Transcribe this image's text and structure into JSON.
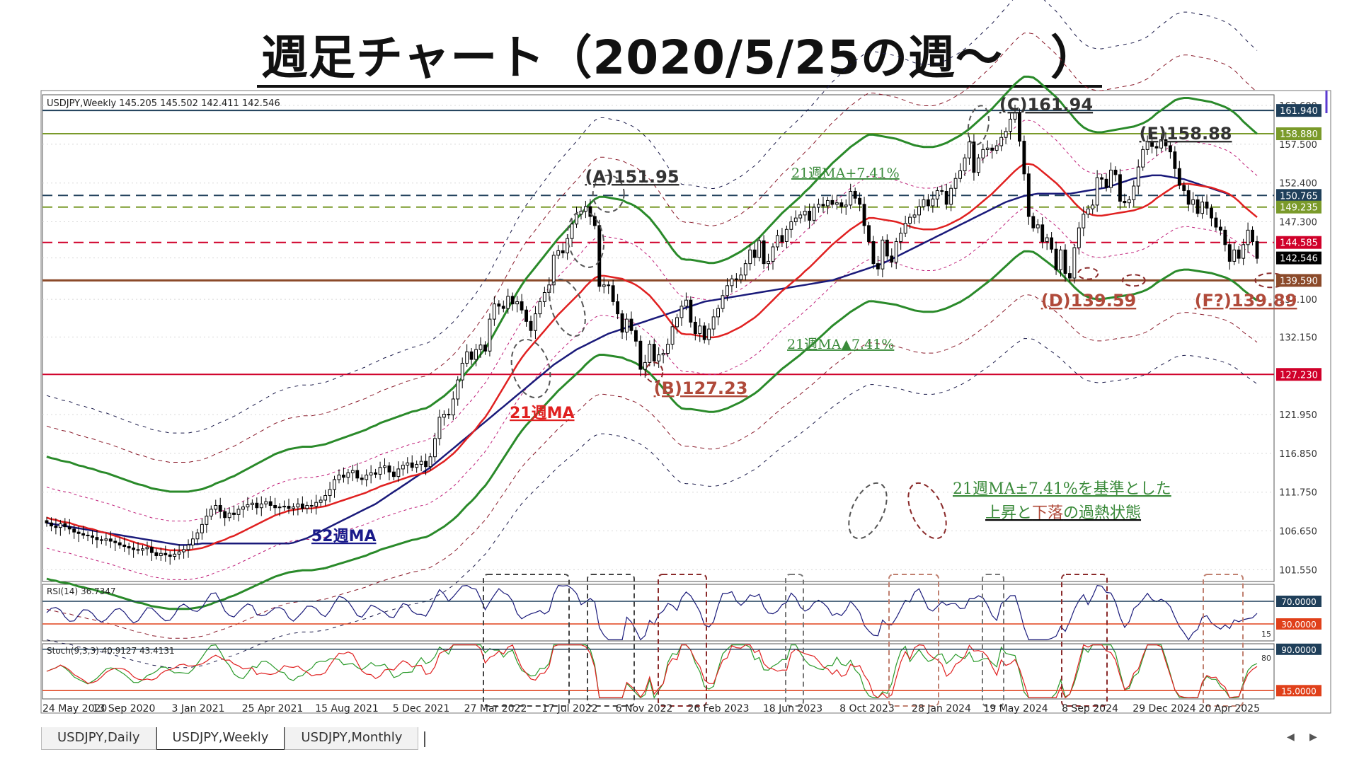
{
  "page": {
    "title": "週足チャート（2020/5/25の週〜　）"
  },
  "chart_data": {
    "type": "candlestick",
    "symbol_header": "USDJPY,Weekly  145.205 145.502 142.411 142.546",
    "main": {
      "ylim": [
        100,
        164
      ],
      "price_ticks": [
        "162.600",
        "157.500",
        "152.400",
        "147.300",
        "142.546",
        "137.100",
        "132.150",
        "127.230",
        "121.950",
        "116.850",
        "111.750",
        "106.650",
        "101.550"
      ],
      "date_ticks": [
        "24 May 2020",
        "13 Sep 2020",
        "3 Jan 2021",
        "25 Apr 2021",
        "15 Aug 2021",
        "5 Dec 2021",
        "27 Mar 2022",
        "17 Jul 2022",
        "6 Nov 2022",
        "26 Feb 2023",
        "18 Jun 2023",
        "8 Oct 2023",
        "28 Jan 2024",
        "19 May 2024",
        "8 Sep 2024",
        "29 Dec 2024",
        "20 Apr 2025"
      ],
      "levels": [
        {
          "value": 161.94,
          "label": "161.940",
          "color": "#1f3f5a",
          "style": "solid"
        },
        {
          "value": 158.88,
          "label": "158.880",
          "color": "#7a9a2a",
          "style": "solid"
        },
        {
          "value": 150.765,
          "label": "150.765",
          "color": "#1f3f5a",
          "style": "dashed"
        },
        {
          "value": 149.235,
          "label": "149.235",
          "color": "#7a9a2a",
          "style": "dashed"
        },
        {
          "value": 144.585,
          "label": "144.585",
          "color": "#d0002a",
          "style": "dashed"
        },
        {
          "value": 142.546,
          "label": "142.546",
          "color": "#000000",
          "style": "none"
        },
        {
          "value": 139.59,
          "label": "139.590",
          "color": "#8b4a2a",
          "style": "thick"
        },
        {
          "value": 127.23,
          "label": "127.230",
          "color": "#d0002a",
          "style": "solid"
        }
      ],
      "closes": [
        107.7,
        107.3,
        107.1,
        107.6,
        107.2,
        106.9,
        106.5,
        106.3,
        106.1,
        106.0,
        105.8,
        105.5,
        105.4,
        105.6,
        105.3,
        105.1,
        104.8,
        104.6,
        104.4,
        104.2,
        104.1,
        104.3,
        104.5,
        103.8,
        103.4,
        103.7,
        103.5,
        103.3,
        103.6,
        103.9,
        104.2,
        104.8,
        105.6,
        106.4,
        107.5,
        108.6,
        109.5,
        110.0,
        109.2,
        108.4,
        109.0,
        108.8,
        109.5,
        109.8,
        110.1,
        110.3,
        109.7,
        110.2,
        110.5,
        110.0,
        109.7,
        109.8,
        109.9,
        109.6,
        109.8,
        110.2,
        109.6,
        110.0,
        109.9,
        110.4,
        110.7,
        111.3,
        112.1,
        113.4,
        114.0,
        113.7,
        114.3,
        114.6,
        113.6,
        113.4,
        114.0,
        114.3,
        114.1,
        115.0,
        115.2,
        114.4,
        113.8,
        114.8,
        115.3,
        115.6,
        115.0,
        115.4,
        115.8,
        115.1,
        116.4,
        118.8,
        121.6,
        122.0,
        121.9,
        124.0,
        126.5,
        128.7,
        130.2,
        129.2,
        130.5,
        131.1,
        130.3,
        134.5,
        136.5,
        136.2,
        135.9,
        137.5,
        136.5,
        136.8,
        135.7,
        134.2,
        133.0,
        135.2,
        136.8,
        138.0,
        139.0,
        142.9,
        143.5,
        143.2,
        145.1,
        147.0,
        148.3,
        148.7,
        149.3,
        148.0,
        146.8,
        138.8,
        139.0,
        138.9,
        136.8,
        135.2,
        132.8,
        134.5,
        133.0,
        131.6,
        127.9,
        128.8,
        131.2,
        129.0,
        129.8,
        130.0,
        131.2,
        133.5,
        134.7,
        136.2,
        137.0,
        134.1,
        132.6,
        133.6,
        131.8,
        133.2,
        134.8,
        135.9,
        137.6,
        138.9,
        139.8,
        139.7,
        140.3,
        141.8,
        143.6,
        142.6,
        144.8,
        141.8,
        142.1,
        144.0,
        145.5,
        144.7,
        146.3,
        147.3,
        147.8,
        148.2,
        148.7,
        147.5,
        149.2,
        149.6,
        149.4,
        150.1,
        149.6,
        149.8,
        149.3,
        149.5,
        151.3,
        150.4,
        149.6,
        146.8,
        144.7,
        141.8,
        141.1,
        144.9,
        142.8,
        142.0,
        144.7,
        145.8,
        147.1,
        147.9,
        148.2,
        149.3,
        150.2,
        149.4,
        150.3,
        151.4,
        151.3,
        149.6,
        151.7,
        153.0,
        154.0,
        155.7,
        157.8,
        153.8,
        155.7,
        156.8,
        157.0,
        156.7,
        157.3,
        158.4,
        159.2,
        160.8,
        161.7,
        157.9,
        153.6,
        148.0,
        146.5,
        146.9,
        144.7,
        145.2,
        143.7,
        141.0,
        143.6,
        140.5,
        139.9,
        143.9,
        146.5,
        148.3,
        149.0,
        149.5,
        153.1,
        152.9,
        151.8,
        154.1,
        153.5,
        150.0,
        149.8,
        150.2,
        152.0,
        154.5,
        156.8,
        157.9,
        157.2,
        157.0,
        158.1,
        157.3,
        156.5,
        154.3,
        152.1,
        151.4,
        149.6,
        150.2,
        148.4,
        149.9,
        149.1,
        147.8,
        146.6,
        146.2,
        144.3,
        142.1,
        143.6,
        142.5,
        144.3,
        146.2,
        144.7,
        142.5
      ],
      "ma21": [
        108.4,
        108.2,
        108.1,
        107.9,
        107.8,
        107.7,
        107.5,
        107.3,
        107.2,
        107.0,
        106.9,
        106.7,
        106.5,
        106.4,
        106.2,
        106.0,
        105.8,
        105.6,
        105.4,
        105.2,
        105.0,
        104.9,
        104.7,
        104.5,
        104.4,
        104.3,
        104.2,
        104.1,
        104.1,
        104.1,
        104.1,
        104.1,
        104.2,
        104.3,
        104.4,
        104.6,
        104.8,
        105.1,
        105.3,
        105.5,
        105.8,
        106.0,
        106.3,
        106.6,
        106.9,
        107.2,
        107.5,
        107.8,
        108.1,
        108.4,
        108.7,
        108.9,
        109.1,
        109.3,
        109.4,
        109.5,
        109.6,
        109.6,
        109.6,
        109.7,
        109.8,
        109.9,
        110.1,
        110.3,
        110.5,
        110.7,
        110.9,
        111.1,
        111.3,
        111.5,
        111.7,
        112.0,
        112.2,
        112.5,
        112.7,
        112.9,
        113.1,
        113.3,
        113.5,
        113.7,
        113.9,
        114.0,
        114.2,
        114.3,
        114.6,
        115.0,
        115.4,
        115.8,
        116.3,
        116.8,
        117.4,
        118.1,
        118.8,
        119.4,
        120.1,
        120.9,
        121.6,
        122.5,
        123.5,
        124.5,
        125.5,
        126.5,
        127.5,
        128.5,
        129.4,
        130.2,
        130.9,
        131.6,
        132.3,
        133.0,
        133.7,
        134.4,
        135.1,
        135.7,
        136.3,
        136.9,
        137.5,
        138.1,
        138.8,
        139.4,
        139.9,
        140.2,
        140.2,
        140.1,
        140.0,
        139.9,
        139.8,
        139.5,
        139.3,
        139.0,
        138.6,
        138.1,
        137.6,
        136.9,
        136.2,
        135.4,
        134.6,
        133.8,
        133.1,
        132.6,
        132.5,
        132.5,
        132.4,
        132.3,
        132.2,
        132.1,
        132.1,
        132.2,
        132.4,
        132.6,
        132.9,
        133.2,
        133.5,
        133.9,
        134.3,
        134.7,
        135.2,
        135.8,
        136.4,
        137.0,
        137.6,
        138.2,
        138.7,
        139.2,
        139.7,
        140.2,
        140.8,
        141.3,
        141.9,
        142.5,
        143.1,
        143.7,
        144.3,
        144.8,
        145.3,
        145.8,
        146.3,
        146.7,
        147.1,
        147.5,
        147.8,
        147.8,
        147.7,
        147.6,
        147.5,
        147.4,
        147.3,
        147.1,
        146.9,
        146.7,
        146.5,
        146.4,
        146.3,
        146.3,
        146.3,
        146.4,
        146.6,
        146.8,
        147.1,
        147.4,
        147.7,
        148.1,
        148.5,
        149.0,
        149.5,
        150.0,
        150.5,
        151.0,
        151.6,
        152.2,
        152.8,
        153.4,
        154.0,
        154.5,
        154.9,
        154.9,
        154.8,
        154.4,
        153.9,
        153.4,
        152.9,
        152.4,
        151.8,
        151.1,
        150.5,
        149.8,
        149.2,
        148.7,
        148.4,
        148.2,
        148.1,
        148.1,
        148.2,
        148.3,
        148.4,
        148.5,
        148.6,
        148.7,
        148.8,
        149.0,
        149.2,
        149.5,
        149.9,
        150.4,
        150.8,
        151.2,
        151.6,
        152.0,
        152.2,
        152.3,
        152.3,
        152.2,
        152.1,
        152.0,
        151.9,
        151.8,
        151.6,
        151.4,
        151.2,
        150.9,
        150.5,
        150.0,
        149.4,
        148.9,
        148.4,
        147.9
      ],
      "ma52": [
        107.7,
        107.6,
        107.5,
        107.4,
        107.3,
        107.2,
        107.1,
        107.0,
        106.9,
        106.8,
        106.7,
        106.6,
        106.5,
        106.4,
        106.3,
        106.2,
        106.1,
        106.0,
        105.9,
        105.8,
        105.7,
        105.6,
        105.5,
        105.4,
        105.3,
        105.2,
        105.1,
        105.0,
        104.9,
        104.8,
        104.8,
        104.8,
        104.9,
        104.9,
        105.0,
        105.0,
        105.0,
        105.0,
        105.0,
        105.0,
        105.0,
        105.0,
        105.0,
        105.0,
        105.0,
        105.0,
        105.0,
        105.0,
        105.0,
        105.0,
        105.0,
        105.0,
        105.0,
        105.0,
        105.1,
        105.3,
        105.5,
        105.7,
        106.0,
        106.3,
        106.6,
        106.9,
        107.2,
        107.5,
        107.8,
        108.1,
        108.4,
        108.7,
        109.0,
        109.3,
        109.6,
        109.9,
        110.2,
        110.6,
        111.0,
        111.4,
        111.8,
        112.2,
        112.6,
        113.0,
        113.4,
        113.8,
        114.2,
        114.6,
        115.0,
        115.5,
        116.0,
        116.5,
        117.0,
        117.5,
        118.0,
        118.5,
        119.0,
        119.5,
        120.0,
        120.5,
        121.0,
        121.5,
        122.0,
        122.5,
        123.0,
        123.5,
        124.0,
        124.5,
        125.0,
        125.5,
        126.0,
        126.5,
        127.0,
        127.5,
        128.0,
        128.5,
        128.9,
        129.3,
        129.7,
        130.1,
        130.5,
        130.8,
        131.1,
        131.4,
        131.7,
        132.0,
        132.3,
        132.6,
        132.8,
        133.0,
        133.2,
        133.4,
        133.6,
        133.8,
        134.0,
        134.2,
        134.4,
        134.6,
        134.8,
        135.0,
        135.2,
        135.4,
        135.6,
        135.8,
        136.0,
        136.2,
        136.4,
        136.6,
        136.8,
        136.9,
        137.0,
        137.1,
        137.2,
        137.3,
        137.4,
        137.5,
        137.6,
        137.7,
        137.8,
        137.9,
        138.0,
        138.1,
        138.2,
        138.3,
        138.4,
        138.5,
        138.6,
        138.7,
        138.8,
        138.9,
        139.0,
        139.1,
        139.2,
        139.3,
        139.4,
        139.5,
        139.6,
        139.8,
        140.0,
        140.2,
        140.4,
        140.6,
        140.8,
        141.0,
        141.2,
        141.4,
        141.6,
        141.8,
        142.1,
        142.4,
        142.7,
        143.0,
        143.3,
        143.6,
        143.9,
        144.2,
        144.5,
        144.8,
        145.1,
        145.4,
        145.7,
        146.0,
        146.3,
        146.6,
        146.9,
        147.2,
        147.5,
        147.8,
        148.1,
        148.4,
        148.7,
        149.0,
        149.3,
        149.6,
        149.9,
        150.1,
        150.3,
        150.5,
        150.7,
        150.8,
        150.9,
        151.0,
        151.0,
        151.0,
        151.0,
        151.0,
        151.0,
        151.0,
        151.0,
        151.1,
        151.2,
        151.3,
        151.4,
        151.5,
        151.6,
        151.7,
        151.8,
        152.0,
        152.2,
        152.4,
        152.6,
        152.8,
        153.0,
        153.1,
        153.2,
        153.3,
        153.4,
        153.4,
        153.4,
        153.3,
        153.2,
        153.1,
        153.0,
        152.9,
        152.7,
        152.5,
        152.3,
        152.1,
        151.9,
        151.7,
        151.5,
        151.3,
        151.1,
        150.9
      ],
      "band_pct": 7.41,
      "texts": [
        {
          "id": "label-A",
          "text": "(A)151.95",
          "color": "#333333"
        },
        {
          "id": "label-B",
          "text": "(B)127.23",
          "color": "#b04a3a"
        },
        {
          "id": "label-C",
          "text": "(C)161.94",
          "color": "#333333"
        },
        {
          "id": "label-D",
          "text": "(D)139.59",
          "color": "#b04a3a"
        },
        {
          "id": "label-E",
          "text": "(E)158.88",
          "color": "#333333"
        },
        {
          "id": "label-F",
          "text": "(F?)139.89",
          "color": "#b04a3a"
        },
        {
          "id": "label-upper",
          "text": "21週MA+7.41%",
          "color": "#3a8a3a"
        },
        {
          "id": "label-lower",
          "text": "21週MA▲7.41%",
          "color": "#3a8a3a"
        },
        {
          "id": "label-ma21",
          "text": "21週MA",
          "color": "#e02020"
        },
        {
          "id": "label-ma52",
          "text": "52週MA",
          "color": "#1a1a8a"
        },
        {
          "id": "legend-1",
          "text": "21週MA±7.41%を基準とした",
          "color": "#3a8a3a"
        },
        {
          "id": "legend-2a",
          "text": "上昇と",
          "color": "#3a8a3a"
        },
        {
          "id": "legend-2b",
          "text": "下落",
          "color": "#b04a3a"
        },
        {
          "id": "legend-2c",
          "text": "の過熱状態",
          "color": "#3a8a3a"
        }
      ]
    },
    "rsi": {
      "header": "RSI(14) 36.7347",
      "levels": [
        {
          "value": 70,
          "label": "70.0000",
          "color": "#1f3f5a"
        },
        {
          "value": 30,
          "label": "30.0000",
          "color": "#e0401a"
        }
      ],
      "left_ticks": [
        "15"
      ]
    },
    "stoch": {
      "header": "Stoch(9,3,3) 40.9127 43.4131",
      "levels": [
        {
          "value": 90,
          "label": "90.0000",
          "color": "#1f3f5a"
        },
        {
          "value": 15,
          "label": "15.0000",
          "color": "#e0401a"
        }
      ],
      "left_ticks": [
        "80"
      ]
    }
  },
  "tabs": [
    {
      "label": "USDJPY,Daily",
      "active": false
    },
    {
      "label": "USDJPY,Weekly",
      "active": true
    },
    {
      "label": "USDJPY,Monthly",
      "active": false
    }
  ]
}
